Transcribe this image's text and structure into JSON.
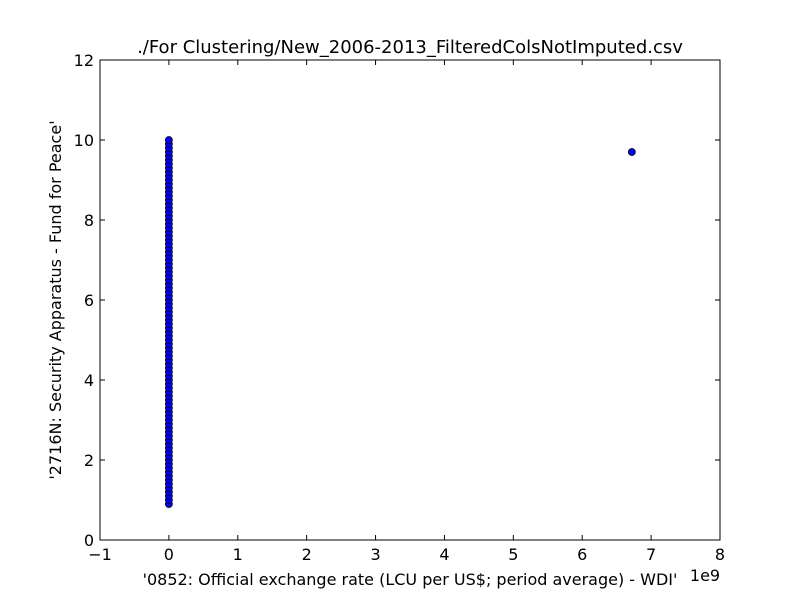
{
  "chart_data": {
    "type": "scatter",
    "title": "./For Clustering/New_2006-2013_FilteredColsNotImputed.csv",
    "xlabel": "'0852: Official exchange rate  (LCU per US$; period average) - WDI'",
    "ylabel": "'2716N: Security Apparatus - Fund for Peace'",
    "x_offset_label": "1e9",
    "xlim": [
      -1,
      8
    ],
    "ylim": [
      0,
      12
    ],
    "x_ticks": [
      -1,
      0,
      1,
      2,
      3,
      4,
      5,
      6,
      7,
      8
    ],
    "y_ticks": [
      0,
      2,
      4,
      6,
      8,
      10,
      12
    ],
    "x_tick_labels": [
      "−1",
      "0",
      "1",
      "2",
      "3",
      "4",
      "5",
      "6",
      "7",
      "8"
    ],
    "y_tick_labels": [
      "0",
      "2",
      "4",
      "6",
      "8",
      "10",
      "12"
    ],
    "grid": false,
    "marker_color": "#0000ff",
    "marker_edge_color": "#000000",
    "series": [
      {
        "points": [
          {
            "x": 0,
            "y": 0.9
          },
          {
            "x": 0,
            "y": 1.0
          },
          {
            "x": 0,
            "y": 1.1
          },
          {
            "x": 0,
            "y": 1.2
          },
          {
            "x": 0,
            "y": 1.3
          },
          {
            "x": 0,
            "y": 1.4
          },
          {
            "x": 0,
            "y": 1.5
          },
          {
            "x": 0,
            "y": 1.6
          },
          {
            "x": 0,
            "y": 1.7
          },
          {
            "x": 0,
            "y": 1.8
          },
          {
            "x": 0,
            "y": 1.9
          },
          {
            "x": 0,
            "y": 2.0
          },
          {
            "x": 0,
            "y": 2.1
          },
          {
            "x": 0,
            "y": 2.2
          },
          {
            "x": 0,
            "y": 2.3
          },
          {
            "x": 0,
            "y": 2.4
          },
          {
            "x": 0,
            "y": 2.5
          },
          {
            "x": 0,
            "y": 2.6
          },
          {
            "x": 0,
            "y": 2.7
          },
          {
            "x": 0,
            "y": 2.8
          },
          {
            "x": 0,
            "y": 2.9
          },
          {
            "x": 0,
            "y": 3.0
          },
          {
            "x": 0,
            "y": 3.1
          },
          {
            "x": 0,
            "y": 3.2
          },
          {
            "x": 0,
            "y": 3.3
          },
          {
            "x": 0,
            "y": 3.4
          },
          {
            "x": 0,
            "y": 3.5
          },
          {
            "x": 0,
            "y": 3.6
          },
          {
            "x": 0,
            "y": 3.7
          },
          {
            "x": 0,
            "y": 3.8
          },
          {
            "x": 0,
            "y": 3.9
          },
          {
            "x": 0,
            "y": 4.0
          },
          {
            "x": 0,
            "y": 4.1
          },
          {
            "x": 0,
            "y": 4.2
          },
          {
            "x": 0,
            "y": 4.3
          },
          {
            "x": 0,
            "y": 4.4
          },
          {
            "x": 0,
            "y": 4.5
          },
          {
            "x": 0,
            "y": 4.6
          },
          {
            "x": 0,
            "y": 4.7
          },
          {
            "x": 0,
            "y": 4.8
          },
          {
            "x": 0,
            "y": 4.9
          },
          {
            "x": 0,
            "y": 5.0
          },
          {
            "x": 0,
            "y": 5.1
          },
          {
            "x": 0,
            "y": 5.2
          },
          {
            "x": 0,
            "y": 5.3
          },
          {
            "x": 0,
            "y": 5.4
          },
          {
            "x": 0,
            "y": 5.5
          },
          {
            "x": 0,
            "y": 5.6
          },
          {
            "x": 0,
            "y": 5.7
          },
          {
            "x": 0,
            "y": 5.8
          },
          {
            "x": 0,
            "y": 5.9
          },
          {
            "x": 0,
            "y": 6.0
          },
          {
            "x": 0,
            "y": 6.1
          },
          {
            "x": 0,
            "y": 6.2
          },
          {
            "x": 0,
            "y": 6.3
          },
          {
            "x": 0,
            "y": 6.4
          },
          {
            "x": 0,
            "y": 6.5
          },
          {
            "x": 0,
            "y": 6.6
          },
          {
            "x": 0,
            "y": 6.7
          },
          {
            "x": 0,
            "y": 6.8
          },
          {
            "x": 0,
            "y": 6.9
          },
          {
            "x": 0,
            "y": 7.0
          },
          {
            "x": 0,
            "y": 7.1
          },
          {
            "x": 0,
            "y": 7.2
          },
          {
            "x": 0,
            "y": 7.3
          },
          {
            "x": 0,
            "y": 7.4
          },
          {
            "x": 0,
            "y": 7.5
          },
          {
            "x": 0,
            "y": 7.6
          },
          {
            "x": 0,
            "y": 7.7
          },
          {
            "x": 0,
            "y": 7.8
          },
          {
            "x": 0,
            "y": 7.9
          },
          {
            "x": 0,
            "y": 8.0
          },
          {
            "x": 0,
            "y": 8.1
          },
          {
            "x": 0,
            "y": 8.2
          },
          {
            "x": 0,
            "y": 8.3
          },
          {
            "x": 0,
            "y": 8.4
          },
          {
            "x": 0,
            "y": 8.5
          },
          {
            "x": 0,
            "y": 8.6
          },
          {
            "x": 0,
            "y": 8.7
          },
          {
            "x": 0,
            "y": 8.8
          },
          {
            "x": 0,
            "y": 8.9
          },
          {
            "x": 0,
            "y": 9.0
          },
          {
            "x": 0,
            "y": 9.1
          },
          {
            "x": 0,
            "y": 9.2
          },
          {
            "x": 0,
            "y": 9.3
          },
          {
            "x": 0,
            "y": 9.4
          },
          {
            "x": 0,
            "y": 9.5
          },
          {
            "x": 0,
            "y": 9.6
          },
          {
            "x": 0,
            "y": 9.7
          },
          {
            "x": 0,
            "y": 9.8
          },
          {
            "x": 0,
            "y": 9.9
          },
          {
            "x": 0,
            "y": 10.0
          },
          {
            "x": 6.72,
            "y": 9.7
          }
        ]
      }
    ]
  }
}
